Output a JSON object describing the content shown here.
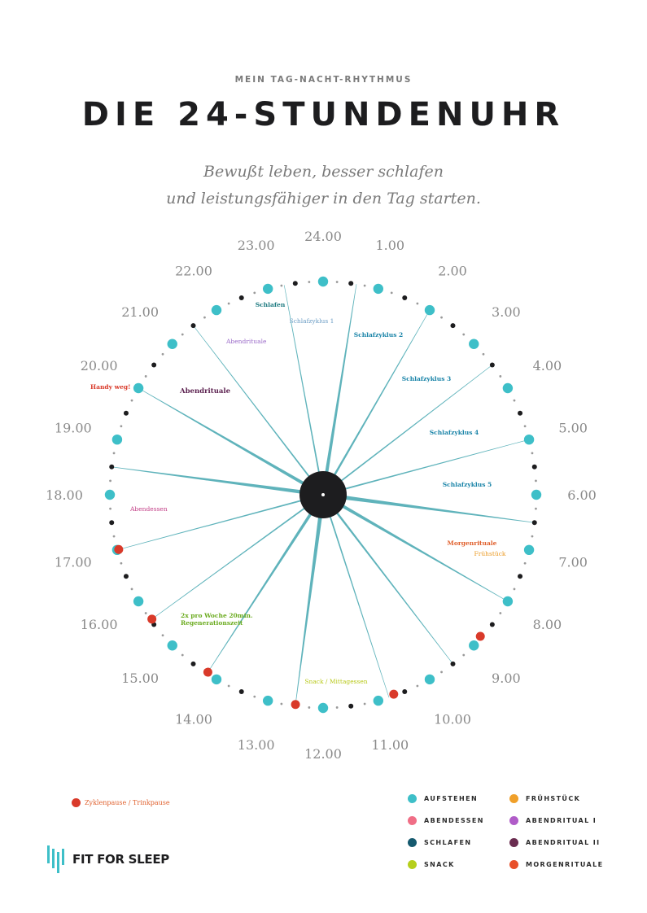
{
  "header": {
    "kicker": "MEIN TAG-NACHT-RHYTHMUS",
    "title": "DIE 24-STUNDENUHR",
    "subtitle_line1": "Bewußt leben, besser schlafen",
    "subtitle_line2": "und leistungsfähiger in den Tag starten."
  },
  "clock": {
    "hour_labels": [
      "24.00",
      "1.00",
      "2.00",
      "3.00",
      "4.00",
      "5.00",
      "6.00",
      "7.00",
      "8.00",
      "9.00",
      "10.00",
      "11.00",
      "12.00",
      "13.00",
      "14.00",
      "15.00",
      "16.00",
      "17.00",
      "18.00",
      "19.00",
      "20.00",
      "21.00",
      "22.00",
      "23.00"
    ],
    "colors": {
      "hour_dot": "#3ebfc8",
      "half_hour_dot": "#1d1d1f",
      "minor_dot": "#9a9a9a",
      "pause_dot": "#d93a2a",
      "spoke": "#5fb3bb",
      "hub": "#1d1d1f",
      "hour_label": "#8a8a8a"
    },
    "pause_markers_hours": [
      8.8,
      10.7,
      12.5,
      14.2,
      15.6,
      17.0
    ],
    "spokes": [
      {
        "hour": 0.6,
        "weight": 2.2
      },
      {
        "hour": 2.0,
        "weight": 1.4
      },
      {
        "hour": 3.5,
        "weight": 1.0
      },
      {
        "hour": 5.0,
        "weight": 1.0
      },
      {
        "hour": 6.5,
        "weight": 2.6
      },
      {
        "hour": 8.0,
        "weight": 2.2
      },
      {
        "hour": 9.5,
        "weight": 1.4
      },
      {
        "hour": 10.8,
        "weight": 1.0
      },
      {
        "hour": 12.5,
        "weight": 2.6
      },
      {
        "hour": 14.2,
        "weight": 2.0
      },
      {
        "hour": 15.6,
        "weight": 1.0
      },
      {
        "hour": 17.0,
        "weight": 1.0
      },
      {
        "hour": 18.5,
        "weight": 2.4
      },
      {
        "hour": 20.0,
        "weight": 2.2
      },
      {
        "hour": 21.5,
        "weight": 1.0
      },
      {
        "hour": 23.3,
        "weight": 1.0
      }
    ],
    "activities": [
      {
        "text": "Schlafen",
        "color": "#1d7a80"
      },
      {
        "text": "Schlafzyklus 1",
        "color": "#6a9cc4"
      },
      {
        "text": "Schlafzyklus 2",
        "color": "#1a84a8"
      },
      {
        "text": "Schlafzyklus 3",
        "color": "#1a84a8"
      },
      {
        "text": "Schlafzyklus 4",
        "color": "#1a84a8"
      },
      {
        "text": "Schlafzyklus 5",
        "color": "#1a84a8"
      },
      {
        "text": "Morgenrituale",
        "color": "#e0602d"
      },
      {
        "text": "Frühstück",
        "color": "#eb9a23"
      },
      {
        "text": "Snack / Mittagessen",
        "color": "#b8c91a"
      },
      {
        "text": "2x pro Woche 20min.",
        "color": "#6bab1f"
      },
      {
        "text": "Regenerationszeit",
        "color": "#6bab1f"
      },
      {
        "text": "Abendessen",
        "color": "#c23e86"
      },
      {
        "text": "Handy weg!",
        "color": "#d93a2a"
      },
      {
        "text": "Abendrituale",
        "color": "#5a1f4e"
      },
      {
        "text": "Abendrituale",
        "color": "#9a6ac8"
      }
    ]
  },
  "legend_left": {
    "label": "Zyklenpause / Trinkpause",
    "color": "#d93a2a"
  },
  "legend": [
    {
      "label": "AUFSTEHEN",
      "color": "#3ebfc8"
    },
    {
      "label": "FRÜHSTÜCK",
      "color": "#f0a02a"
    },
    {
      "label": "ABENDESSEN",
      "color": "#f06e86"
    },
    {
      "label": "ABENDRITUAL I",
      "color": "#b05cc8"
    },
    {
      "label": "SCHLAFEN",
      "color": "#15596e"
    },
    {
      "label": "ABENDRITUAL II",
      "color": "#6a2c50"
    },
    {
      "label": "SNACK",
      "color": "#b6cf1c"
    },
    {
      "label": "MORGENRITUALE",
      "color": "#e8502a"
    }
  ],
  "brand": {
    "name": "FIT FOR SLEEP",
    "icon": "fit-for-sleep-logo-icon",
    "color": "#3ebfc8"
  }
}
